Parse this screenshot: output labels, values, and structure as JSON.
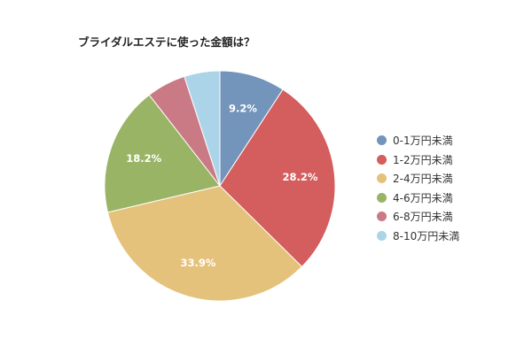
{
  "chart_data": {
    "type": "pie",
    "title": "ブライダルエステに使った金額は？",
    "categories": [
      "0-1万円未満",
      "1-2万円未満",
      "2-4万円未満",
      "4-6万円未満",
      "6-8万円未満",
      "8-10万円未満"
    ],
    "values": [
      9.2,
      28.2,
      33.9,
      18.2,
      5.5,
      5.0
    ],
    "data_labels": [
      "9.2%",
      "28.2%",
      "33.9%",
      "18.2%",
      "",
      ""
    ],
    "colors": [
      "#7394bb",
      "#d45d5d",
      "#e5c27b",
      "#9ab466",
      "#c97a84",
      "#acd4e8"
    ],
    "legend_position": "right"
  }
}
